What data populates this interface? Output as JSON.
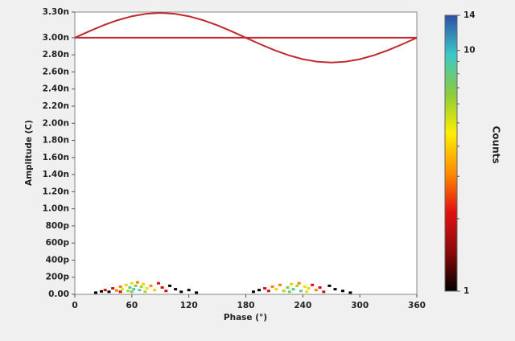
{
  "chart_data": {
    "type": "phase-resolved-scatter",
    "x_label": "Phase (°)",
    "y_label": "Amplitude (C)",
    "xlim": [
      0,
      360
    ],
    "xticks": [
      0,
      60,
      120,
      180,
      240,
      300,
      360
    ],
    "ylim": [
      0,
      3.3e-09
    ],
    "yticks": [
      {
        "value": 0,
        "label": "0.00"
      },
      {
        "value": 2e-10,
        "label": "200p"
      },
      {
        "value": 4e-10,
        "label": "400p"
      },
      {
        "value": 6e-10,
        "label": "600p"
      },
      {
        "value": 8e-10,
        "label": "800p"
      },
      {
        "value": 1e-09,
        "label": "1.00n"
      },
      {
        "value": 1.2e-09,
        "label": "1.20n"
      },
      {
        "value": 1.4e-09,
        "label": "1.40n"
      },
      {
        "value": 1.6e-09,
        "label": "1.60n"
      },
      {
        "value": 1.8e-09,
        "label": "1.80n"
      },
      {
        "value": 2e-09,
        "label": "2.00n"
      },
      {
        "value": 2.2e-09,
        "label": "2.20n"
      },
      {
        "value": 2.4e-09,
        "label": "2.40n"
      },
      {
        "value": 2.6e-09,
        "label": "2.60n"
      },
      {
        "value": 2.8e-09,
        "label": "2.80n"
      },
      {
        "value": 3e-09,
        "label": "3.00n"
      },
      {
        "value": 3.3e-09,
        "label": "3.30n"
      }
    ],
    "lines": [
      {
        "color": "#c0282c",
        "x": [
          0,
          15,
          30,
          45,
          60,
          75,
          90,
          105,
          120,
          135,
          150,
          165,
          180,
          195,
          210,
          225,
          240,
          255,
          270,
          285,
          300,
          315,
          330,
          345,
          360
        ],
        "values": [
          3e-09,
          3.075e-09,
          3.145e-09,
          3.205e-09,
          3.251e-09,
          3.28e-09,
          3.29e-09,
          3.28e-09,
          3.251e-09,
          3.205e-09,
          3.145e-09,
          3.075e-09,
          3e-09,
          2.925e-09,
          2.855e-09,
          2.795e-09,
          2.749e-09,
          2.72e-09,
          2.71e-09,
          2.72e-09,
          2.749e-09,
          2.795e-09,
          2.855e-09,
          2.925e-09,
          3e-09
        ]
      },
      {
        "color": "#c0282c",
        "x": [
          0,
          360
        ],
        "values": [
          3e-09,
          3e-09
        ]
      }
    ],
    "points": {
      "x": [
        22,
        28,
        32,
        36,
        40,
        44,
        48,
        50,
        54,
        56,
        58,
        60,
        62,
        64,
        66,
        68,
        70,
        72,
        76,
        80,
        84,
        88,
        92,
        96,
        100,
        106,
        112,
        120,
        128,
        48,
        60,
        74,
        188,
        194,
        200,
        204,
        208,
        212,
        216,
        220,
        224,
        228,
        230,
        234,
        236,
        238,
        242,
        246,
        250,
        254,
        258,
        262,
        268,
        274,
        282,
        290,
        226,
        244
      ],
      "values": [
        2e-11,
        3.5e-11,
        5e-11,
        3e-11,
        7e-11,
        4.5e-11,
        9e-11,
        6e-11,
        1.1e-10,
        4e-11,
        8e-11,
        1.3e-10,
        6e-11,
        1e-10,
        1.4e-10,
        5e-11,
        9e-11,
        1.2e-10,
        7e-11,
        1e-10,
        5e-11,
        1.3e-10,
        8e-11,
        4e-11,
        1e-10,
        6e-11,
        3e-11,
        5e-11,
        2e-11,
        3e-11,
        3e-11,
        3e-11,
        3e-11,
        5e-11,
        7e-11,
        4e-11,
        9e-11,
        6e-11,
        1.1e-10,
        4e-11,
        8e-11,
        1.2e-10,
        6e-11,
        1e-10,
        1.3e-10,
        4e-11,
        9e-11,
        7e-11,
        1.1e-10,
        5e-11,
        8e-11,
        3e-11,
        1e-10,
        6e-11,
        4e-11,
        2e-11,
        3e-11,
        3e-11
      ],
      "counts": [
        1,
        1,
        2,
        1,
        2,
        3,
        3,
        5,
        4,
        6,
        8,
        5,
        9,
        7,
        3,
        8,
        6,
        4,
        5,
        3,
        4,
        2,
        2,
        2,
        1,
        1,
        1,
        1,
        1,
        2,
        7,
        6,
        1,
        1,
        2,
        2,
        3,
        4,
        3,
        6,
        7,
        4,
        9,
        6,
        3,
        8,
        5,
        4,
        2,
        3,
        2,
        2,
        1,
        1,
        1,
        1,
        7,
        5
      ]
    },
    "colorbar": {
      "label": "Counts",
      "scale": "log",
      "lim": [
        1,
        14
      ],
      "ticks": [
        1,
        10,
        14
      ],
      "minor_ticks": [
        2,
        3,
        4,
        5,
        6,
        7,
        8,
        9
      ],
      "colors": [
        "#000000",
        "#8b0a0a",
        "#e01010",
        "#ff8c00",
        "#ffee00",
        "#8ccc3a",
        "#3cc8c8",
        "#2a50a8"
      ]
    }
  }
}
